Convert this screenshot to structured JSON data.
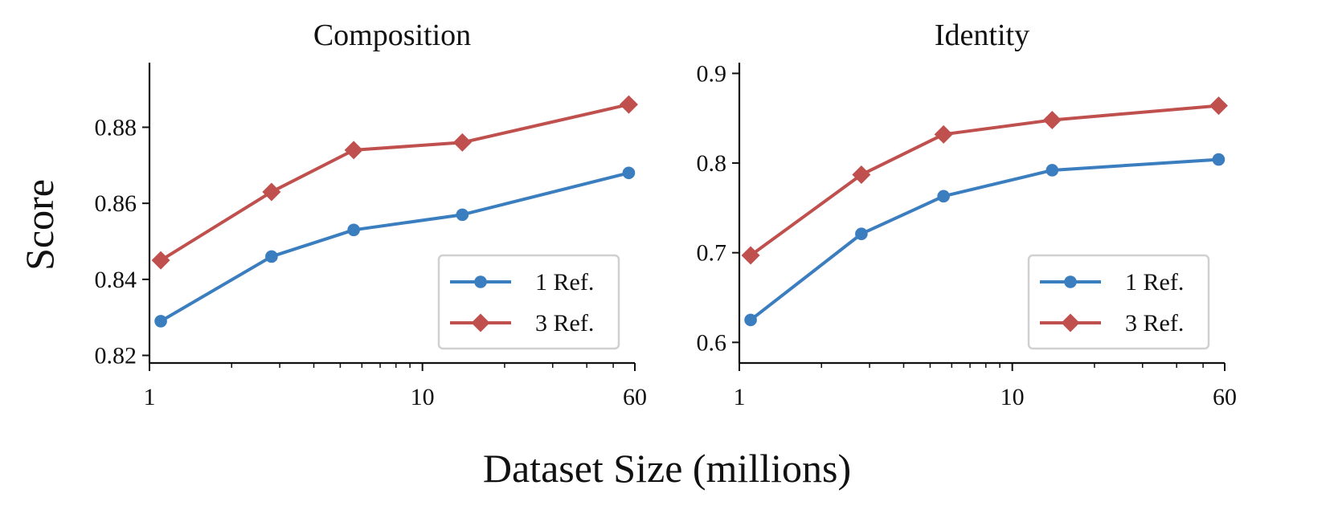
{
  "figure": {
    "shared_xlabel": "Dataset Size (millions)",
    "shared_ylabel": "Score"
  },
  "chart_data": [
    {
      "type": "line",
      "title": "Composition",
      "xscale": "log",
      "xlim": [
        1,
        60
      ],
      "xticks": [
        1,
        10,
        60
      ],
      "xtick_labels": [
        "1",
        "10",
        "60"
      ],
      "ylim": [
        0.818,
        0.897
      ],
      "yticks": [
        0.82,
        0.84,
        0.86,
        0.88
      ],
      "ytick_labels": [
        "0.82",
        "0.84",
        "0.86",
        "0.88"
      ],
      "x": [
        1.1,
        2.8,
        5.6,
        14,
        57
      ],
      "series": [
        {
          "name": "1 Ref.",
          "values": [
            0.829,
            0.846,
            0.853,
            0.857,
            0.868
          ],
          "color": "#3a7ebf",
          "marker": "circle"
        },
        {
          "name": "3 Ref.",
          "values": [
            0.845,
            0.863,
            0.874,
            0.876,
            0.886
          ],
          "color": "#c0504d",
          "marker": "diamond"
        }
      ],
      "legend": "bottom-right"
    },
    {
      "type": "line",
      "title": "Identity",
      "xscale": "log",
      "xlim": [
        1,
        60
      ],
      "xticks": [
        1,
        10,
        60
      ],
      "xtick_labels": [
        "1",
        "10",
        "60"
      ],
      "ylim": [
        0.577,
        0.912
      ],
      "yticks": [
        0.6,
        0.7,
        0.8,
        0.9
      ],
      "ytick_labels": [
        "0.6",
        "0.7",
        "0.8",
        "0.9"
      ],
      "x": [
        1.1,
        2.8,
        5.6,
        14,
        57
      ],
      "series": [
        {
          "name": "1 Ref.",
          "values": [
            0.625,
            0.721,
            0.763,
            0.792,
            0.804
          ],
          "color": "#3a7ebf",
          "marker": "circle"
        },
        {
          "name": "3 Ref.",
          "values": [
            0.697,
            0.787,
            0.832,
            0.848,
            0.864
          ],
          "color": "#c0504d",
          "marker": "diamond"
        }
      ],
      "legend": "bottom-right"
    }
  ]
}
